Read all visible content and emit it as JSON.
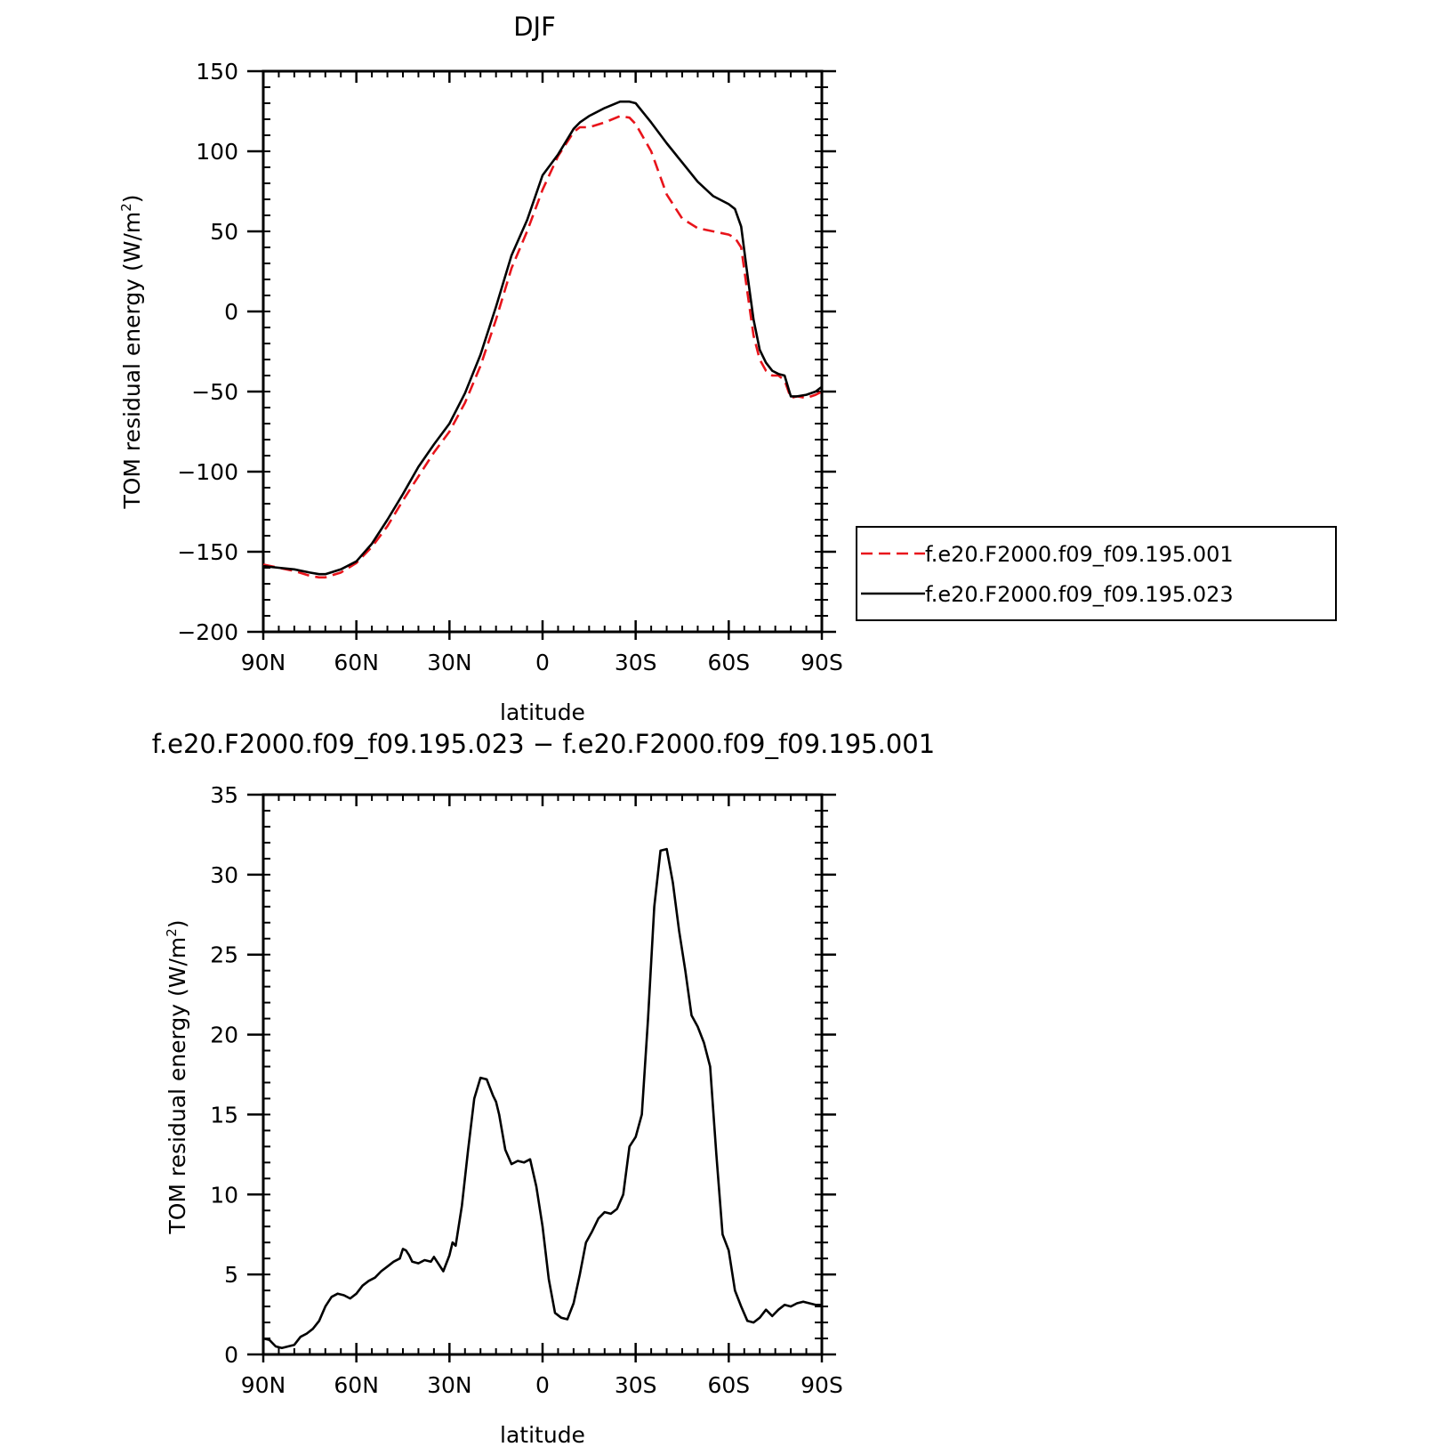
{
  "figure": {
    "panels": [
      {
        "title": "DJF",
        "ylabel_main": "TOM residual energy (W/m",
        "ylabel_sup": "2",
        "ylabel_close": ")",
        "xlabel": "latitude"
      },
      {
        "title": "f.e20.F2000.f09_f09.195.023 − f.e20.F2000.f09_f09.195.001",
        "ylabel_main": "TOM residual energy (W/m",
        "ylabel_sup": "2",
        "ylabel_close": ")",
        "xlabel": "latitude"
      }
    ],
    "legend": {
      "placement": "right-of-top-panel",
      "entries": [
        {
          "label": "f.e20.F2000.f09_f09.195.001",
          "color": "#e8141b",
          "dash": "dashed"
        },
        {
          "label": "f.e20.F2000.f09_f09.195.023",
          "color": "#000000",
          "dash": "solid"
        }
      ]
    }
  },
  "chart_data": [
    {
      "type": "line",
      "title": "DJF",
      "xlabel": "latitude",
      "ylabel": "TOM residual energy (W/m2)",
      "x_direction": "90N to 90S (north on left)",
      "xlim": [
        90,
        -90
      ],
      "ylim": [
        -200,
        150
      ],
      "x_ticks": [
        90,
        60,
        30,
        0,
        -30,
        -60,
        -90
      ],
      "x_tick_labels": [
        "90N",
        "60N",
        "30N",
        "0",
        "30S",
        "60S",
        "90S"
      ],
      "y_ticks": [
        150,
        100,
        50,
        0,
        -50,
        -100,
        -150,
        -200
      ],
      "y_tick_labels": [
        "150",
        "100",
        "50",
        "0",
        "−50",
        "−100",
        "−150",
        "−200"
      ],
      "grid": false,
      "legend": "right",
      "x": [
        90,
        85,
        80,
        75,
        72,
        70,
        65,
        60,
        55,
        50,
        45,
        40,
        35,
        30,
        25,
        20,
        15,
        10,
        5,
        0,
        -5,
        -10,
        -12,
        -15,
        -20,
        -25,
        -28,
        -30,
        -35,
        -40,
        -45,
        -50,
        -55,
        -60,
        -62,
        -64,
        -66,
        -68,
        -70,
        -72,
        -74,
        -76,
        -78,
        -80,
        -82,
        -85,
        -88,
        -90
      ],
      "series": [
        {
          "name": "f.e20.F2000.f09_f09.195.001",
          "color": "#e8141b",
          "dash": "dashed",
          "values": [
            -158,
            -160,
            -162,
            -165,
            -166,
            -166,
            -163,
            -157,
            -147,
            -134,
            -118,
            -103,
            -88,
            -75,
            -57,
            -34,
            -5,
            27,
            50,
            76,
            97,
            112,
            115,
            115,
            118,
            122,
            121,
            117,
            100,
            73,
            58,
            52,
            50,
            48,
            46,
            40,
            12,
            -15,
            -30,
            -37,
            -40,
            -40,
            -43,
            -54,
            -53,
            -54,
            -52,
            -50
          ]
        },
        {
          "name": "f.e20.F2000.f09_f09.195.023",
          "color": "#000000",
          "dash": "solid",
          "values": [
            -159,
            -160,
            -161,
            -163,
            -164,
            -164,
            -161,
            -156,
            -145,
            -130,
            -114,
            -97,
            -83,
            -70,
            -51,
            -27,
            3,
            35,
            57,
            85,
            98,
            114,
            118,
            122,
            127,
            131,
            131,
            130,
            118,
            105,
            93,
            81,
            72,
            67,
            64,
            53,
            23,
            -5,
            -24,
            -32,
            -37,
            -39,
            -40,
            -53,
            -53,
            -52,
            -50,
            -47
          ]
        }
      ]
    },
    {
      "type": "line",
      "title": "f.e20.F2000.f09_f09.195.023 − f.e20.F2000.f09_f09.195.001",
      "xlabel": "latitude",
      "ylabel": "TOM residual energy (W/m2)",
      "x_direction": "90N to 90S (north on left)",
      "xlim": [
        90,
        -90
      ],
      "ylim": [
        0,
        35
      ],
      "x_ticks": [
        90,
        60,
        30,
        0,
        -30,
        -60,
        -90
      ],
      "x_tick_labels": [
        "90N",
        "60N",
        "30N",
        "0",
        "30S",
        "60S",
        "90S"
      ],
      "y_ticks": [
        35,
        30,
        25,
        20,
        15,
        10,
        5,
        0
      ],
      "y_tick_labels": [
        "35",
        "30",
        "25",
        "20",
        "15",
        "10",
        "5",
        "0"
      ],
      "grid": false,
      "x": [
        90,
        88,
        86,
        84,
        82,
        80,
        78,
        76,
        74,
        72,
        70,
        68,
        66,
        64,
        62,
        60,
        58,
        56,
        54,
        52,
        50,
        48,
        46,
        45,
        44,
        43,
        42,
        40,
        38,
        36,
        35,
        34,
        32,
        30,
        29,
        28,
        26,
        24,
        22,
        20,
        18,
        16,
        15,
        14,
        12,
        10,
        8,
        6,
        4,
        2,
        0,
        -2,
        -4,
        -6,
        -8,
        -10,
        -12,
        -14,
        -16,
        -18,
        -20,
        -22,
        -24,
        -26,
        -28,
        -30,
        -32,
        -34,
        -36,
        -38,
        -40,
        -42,
        -44,
        -46,
        -48,
        -50,
        -52,
        -54,
        -56,
        -58,
        -60,
        -62,
        -64,
        -66,
        -68,
        -70,
        -72,
        -74,
        -76,
        -78,
        -80,
        -82,
        -84,
        -86,
        -88,
        -90
      ],
      "series": [
        {
          "name": "",
          "color": "#000000",
          "dash": "solid",
          "values": [
            1.0,
            0.9,
            0.5,
            0.4,
            0.5,
            0.6,
            1.1,
            1.3,
            1.6,
            2.1,
            3.0,
            3.6,
            3.8,
            3.7,
            3.5,
            3.8,
            4.3,
            4.6,
            4.8,
            5.2,
            5.5,
            5.8,
            6.0,
            6.6,
            6.5,
            6.2,
            5.8,
            5.7,
            5.9,
            5.8,
            6.1,
            5.8,
            5.2,
            6.2,
            7.0,
            6.8,
            9.3,
            12.8,
            16.0,
            17.3,
            17.2,
            16.2,
            15.8,
            15.0,
            12.8,
            11.9,
            12.1,
            12.0,
            12.2,
            10.5,
            8.0,
            4.7,
            2.6,
            2.3,
            2.2,
            3.2,
            5.0,
            7.0,
            7.7,
            8.5,
            8.9,
            8.8,
            9.1,
            10.0,
            13.0,
            13.6,
            15.0,
            21.0,
            28.0,
            31.5,
            31.6,
            29.5,
            26.5,
            24.0,
            21.2,
            20.5,
            19.5,
            18.0,
            12.5,
            7.5,
            6.5,
            4.0,
            3.0,
            2.1,
            2.0,
            2.3,
            2.8,
            2.4,
            2.8,
            3.1,
            3.0,
            3.2,
            3.3,
            3.2,
            3.1,
            3.1
          ]
        }
      ]
    }
  ]
}
